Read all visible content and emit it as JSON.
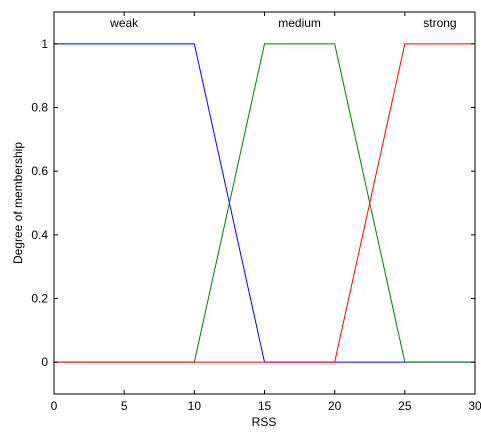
{
  "chart_data": {
    "type": "line",
    "title": "",
    "xlabel": "RSS",
    "ylabel": "Degree of membership",
    "xlim": [
      0,
      30
    ],
    "ylim": [
      -0.1,
      1.1
    ],
    "xticks": [
      0,
      5,
      10,
      15,
      20,
      25,
      30
    ],
    "yticks": [
      0,
      0.2,
      0.4,
      0.6,
      0.8,
      1
    ],
    "grid": false,
    "series": [
      {
        "name": "weak",
        "color": "#0000ff",
        "x": [
          0,
          10,
          15,
          30
        ],
        "y": [
          1,
          1,
          0,
          0
        ]
      },
      {
        "name": "medium",
        "color": "#008000",
        "x": [
          0,
          10,
          15,
          20,
          25,
          30
        ],
        "y": [
          0,
          0,
          1,
          1,
          0,
          0
        ]
      },
      {
        "name": "strong",
        "color": "#ff0000",
        "x": [
          0,
          20,
          25,
          30
        ],
        "y": [
          0,
          0,
          1,
          1
        ]
      }
    ],
    "annotations": [
      {
        "text": "weak",
        "x": 5,
        "y": 1.065
      },
      {
        "text": "medium",
        "x": 17.5,
        "y": 1.065
      },
      {
        "text": "strong",
        "x": 27.5,
        "y": 1.065
      }
    ]
  }
}
